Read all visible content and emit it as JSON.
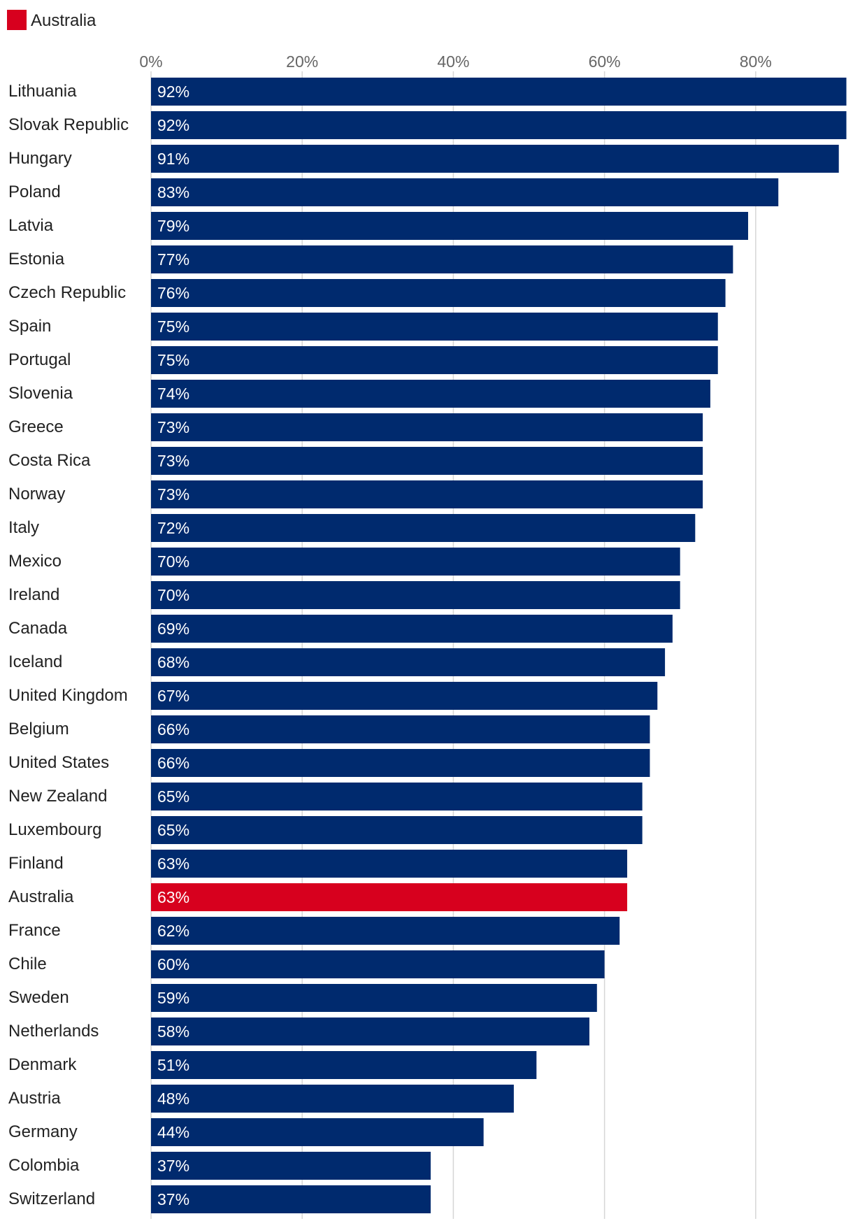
{
  "chart_data": {
    "type": "bar",
    "orientation": "horizontal",
    "title": "",
    "xlabel": "",
    "ylabel": "",
    "xlim": [
      0,
      92
    ],
    "ticks": [
      0,
      20,
      40,
      60,
      80
    ],
    "tick_labels": [
      "0%",
      "20%",
      "40%",
      "60%",
      "80%"
    ],
    "grid": true,
    "legend": {
      "position": "top-left",
      "entries": [
        {
          "name": "Australia",
          "color": "#d7001e"
        }
      ]
    },
    "highlight": "Australia",
    "colors": {
      "default": "#002a6e",
      "highlight": "#d7001e"
    },
    "categories": [
      "Lithuania",
      "Slovak Republic",
      "Hungary",
      "Poland",
      "Latvia",
      "Estonia",
      "Czech Republic",
      "Spain",
      "Portugal",
      "Slovenia",
      "Greece",
      "Costa Rica",
      "Norway",
      "Italy",
      "Mexico",
      "Ireland",
      "Canada",
      "Iceland",
      "United Kingdom",
      "Belgium",
      "United States",
      "New Zealand",
      "Luxembourg",
      "Finland",
      "Australia",
      "France",
      "Chile",
      "Sweden",
      "Netherlands",
      "Denmark",
      "Austria",
      "Germany",
      "Colombia",
      "Switzerland"
    ],
    "values": [
      92,
      92,
      91,
      83,
      79,
      77,
      76,
      75,
      75,
      74,
      73,
      73,
      73,
      72,
      70,
      70,
      69,
      68,
      67,
      66,
      66,
      65,
      65,
      63,
      63,
      62,
      60,
      59,
      58,
      51,
      48,
      44,
      37,
      37
    ],
    "value_labels": [
      "92%",
      "92%",
      "91%",
      "83%",
      "79%",
      "77%",
      "76%",
      "75%",
      "75%",
      "74%",
      "73%",
      "73%",
      "73%",
      "72%",
      "70%",
      "70%",
      "69%",
      "68%",
      "67%",
      "66%",
      "66%",
      "65%",
      "65%",
      "63%",
      "63%",
      "62%",
      "60%",
      "59%",
      "58%",
      "51%",
      "48%",
      "44%",
      "37%",
      "37%"
    ]
  }
}
